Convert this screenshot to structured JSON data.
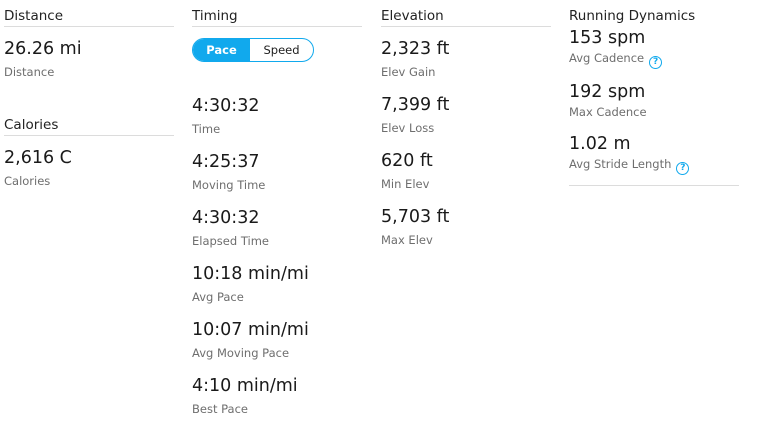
{
  "distance": {
    "heading": "Distance",
    "value": "26.26 mi",
    "label": "Distance"
  },
  "calories": {
    "heading": "Calories",
    "value": "2,616 C",
    "label": "Calories"
  },
  "timing": {
    "heading": "Timing",
    "toggle": {
      "options": [
        "Pace",
        "Speed"
      ],
      "selected": "Pace"
    },
    "stats": [
      {
        "value": "4:30:32",
        "label": "Time"
      },
      {
        "value": "4:25:37",
        "label": "Moving Time"
      },
      {
        "value": "4:30:32",
        "label": "Elapsed Time"
      },
      {
        "value": "10:18 min/mi",
        "label": "Avg Pace"
      },
      {
        "value": "10:07 min/mi",
        "label": "Avg Moving Pace"
      },
      {
        "value": "4:10 min/mi",
        "label": "Best Pace"
      }
    ]
  },
  "elevation": {
    "heading": "Elevation",
    "stats": [
      {
        "value": "2,323 ft",
        "label": "Elev Gain"
      },
      {
        "value": "7,399 ft",
        "label": "Elev Loss"
      },
      {
        "value": "620 ft",
        "label": "Min Elev"
      },
      {
        "value": "5,703 ft",
        "label": "Max Elev"
      }
    ]
  },
  "running_dynamics": {
    "heading": "Running Dynamics",
    "help_icon": "?",
    "stats": [
      {
        "value": "153 spm",
        "label": "Avg Cadence",
        "help": true
      },
      {
        "value": "192 spm",
        "label": "Max Cadence",
        "help": false
      },
      {
        "value": "1.02 m",
        "label": "Avg Stride Length",
        "help": true
      }
    ]
  },
  "colors": {
    "accent": "#11a9ed"
  }
}
